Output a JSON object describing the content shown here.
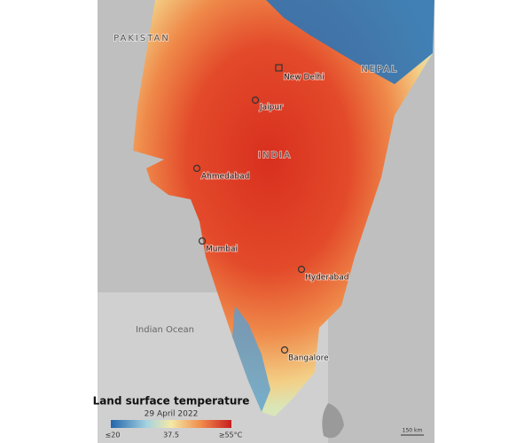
{
  "map": {
    "countries": [
      "PAKISTAN",
      "NEPAL",
      "INDIA"
    ],
    "cities": [
      "New Delhi",
      "Jaipur",
      "Ahmedabad",
      "Mumbai",
      "Hyderabad",
      "Bangalore"
    ],
    "ocean": "Indian Ocean",
    "legend": {
      "title": "Land surface temperature",
      "date": "29 April 2022",
      "labels": [
        "≤20",
        "37.5",
        "≥55°C"
      ]
    },
    "scale_bar": "150 km"
  }
}
